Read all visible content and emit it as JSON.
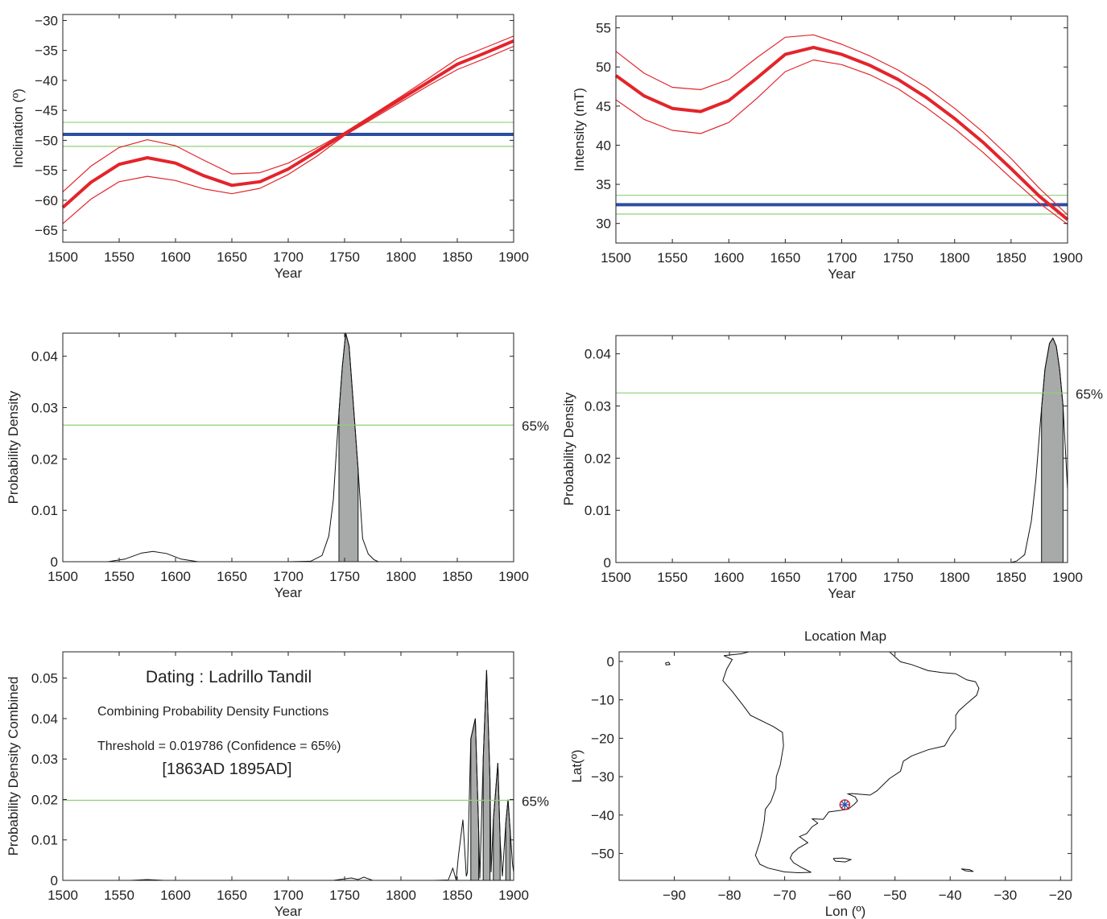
{
  "chart_data": [
    {
      "id": "inclination",
      "type": "line",
      "xlabel": "Year",
      "ylabel": "Inclination (º)",
      "xlim": [
        1500,
        1900
      ],
      "ylim": [
        -67,
        -29
      ],
      "xticks": [
        1500,
        1550,
        1600,
        1650,
        1700,
        1750,
        1800,
        1850,
        1900
      ],
      "yticks": [
        -65,
        -60,
        -55,
        -50,
        -45,
        -40,
        -35,
        -30
      ],
      "ytick_labels": [
        "−65",
        "−60",
        "−55",
        "−50",
        "−45",
        "−40",
        "−35",
        "−30"
      ],
      "x": [
        1500,
        1525,
        1550,
        1575,
        1600,
        1625,
        1650,
        1675,
        1700,
        1725,
        1750,
        1775,
        1800,
        1825,
        1850,
        1875,
        1900
      ],
      "series": [
        {
          "role": "curve",
          "values": [
            -61.2,
            -57.0,
            -54.0,
            -52.9,
            -53.8,
            -55.9,
            -57.5,
            -56.9,
            -54.8,
            -51.9,
            -48.9,
            -46.0,
            -43.1,
            -40.2,
            -37.3,
            -35.4,
            -33.4
          ]
        },
        {
          "role": "upper",
          "values": [
            -58.6,
            -54.3,
            -51.2,
            -49.9,
            -50.9,
            -53.3,
            -55.6,
            -55.4,
            -53.8,
            -51.3,
            -48.7,
            -45.7,
            -42.7,
            -39.6,
            -36.4,
            -34.5,
            -32.6
          ]
        },
        {
          "role": "lower",
          "values": [
            -63.9,
            -59.8,
            -56.9,
            -56.0,
            -56.7,
            -58.1,
            -58.9,
            -58.0,
            -55.7,
            -52.7,
            -49.2,
            -46.4,
            -43.6,
            -40.8,
            -38.2,
            -36.3,
            -34.3
          ]
        }
      ],
      "reference": {
        "value": -49.0,
        "upper": -47.0,
        "lower": -51.0
      }
    },
    {
      "id": "intensity",
      "type": "line",
      "xlabel": "Year",
      "ylabel": "Intensity (mT)",
      "xlim": [
        1500,
        1900
      ],
      "ylim": [
        27.5,
        56.5
      ],
      "xticks": [
        1500,
        1550,
        1600,
        1650,
        1700,
        1750,
        1800,
        1850,
        1900
      ],
      "yticks": [
        30,
        35,
        40,
        45,
        50,
        55
      ],
      "ytick_labels": [
        "30",
        "35",
        "40",
        "45",
        "50",
        "55"
      ],
      "x": [
        1500,
        1525,
        1550,
        1575,
        1600,
        1625,
        1650,
        1675,
        1700,
        1725,
        1750,
        1775,
        1800,
        1825,
        1850,
        1875,
        1900
      ],
      "series": [
        {
          "role": "curve",
          "values": [
            48.9,
            46.3,
            44.7,
            44.3,
            45.7,
            48.6,
            51.6,
            52.5,
            51.6,
            50.2,
            48.4,
            46.1,
            43.4,
            40.4,
            37.0,
            33.5,
            30.5
          ]
        },
        {
          "role": "upper",
          "values": [
            52.0,
            49.2,
            47.4,
            47.1,
            48.4,
            51.2,
            53.8,
            54.1,
            52.9,
            51.4,
            49.6,
            47.4,
            44.7,
            41.7,
            38.3,
            34.5,
            31.1
          ]
        },
        {
          "role": "lower",
          "values": [
            45.8,
            43.3,
            41.9,
            41.5,
            42.9,
            46.0,
            49.4,
            50.9,
            50.3,
            49.0,
            47.2,
            44.8,
            42.1,
            39.1,
            35.8,
            32.6,
            29.9
          ]
        }
      ],
      "reference": {
        "value": 32.4,
        "upper": 33.6,
        "lower": 31.2
      }
    },
    {
      "id": "pdf-inclination",
      "type": "area",
      "xlabel": "Year",
      "ylabel": "Probability Density",
      "xlim": [
        1500,
        1900
      ],
      "ylim": [
        0,
        0.0445
      ],
      "xticks": [
        1500,
        1550,
        1600,
        1650,
        1700,
        1750,
        1800,
        1850,
        1900
      ],
      "yticks": [
        0,
        0.01,
        0.02,
        0.03,
        0.04
      ],
      "ytick_labels": [
        "0",
        "0.01",
        "0.02",
        "0.03",
        "0.04"
      ],
      "x": [
        1500,
        1540,
        1555,
        1570,
        1580,
        1592,
        1605,
        1620,
        1700,
        1720,
        1730,
        1736,
        1740,
        1744,
        1748,
        1751,
        1754,
        1758,
        1762,
        1766,
        1771,
        1776,
        1780,
        1900
      ],
      "values": [
        0,
        0,
        0.0005,
        0.0017,
        0.002,
        0.0016,
        0.0005,
        0,
        0,
        0.0001,
        0.0012,
        0.005,
        0.012,
        0.026,
        0.038,
        0.0445,
        0.042,
        0.03,
        0.018,
        0.0045,
        0.0015,
        0.0004,
        0,
        0
      ],
      "threshold": 0.0266,
      "threshold_label": "65%",
      "interval": [
        1745,
        1762
      ]
    },
    {
      "id": "pdf-intensity",
      "type": "area",
      "xlabel": "Year",
      "ylabel": "Probability Density",
      "xlim": [
        1500,
        1900
      ],
      "ylim": [
        0,
        0.0435
      ],
      "xticks": [
        1500,
        1550,
        1600,
        1650,
        1700,
        1750,
        1800,
        1850,
        1900
      ],
      "yticks": [
        0,
        0.01,
        0.02,
        0.03,
        0.04
      ],
      "ytick_labels": [
        "0",
        "0.01",
        "0.02",
        "0.03",
        "0.04"
      ],
      "x": [
        1500,
        1850,
        1855,
        1862,
        1868,
        1872,
        1876,
        1880,
        1884,
        1887,
        1890,
        1893,
        1896,
        1899,
        1900
      ],
      "values": [
        0,
        0,
        0.0003,
        0.0015,
        0.008,
        0.016,
        0.027,
        0.037,
        0.042,
        0.043,
        0.0415,
        0.037,
        0.03,
        0.018,
        0.014
      ],
      "threshold": 0.0325,
      "threshold_label": "65%",
      "interval": [
        1877,
        1896
      ]
    },
    {
      "id": "pdf-combined",
      "type": "area",
      "xlabel": "Year",
      "ylabel": "Probability Density Combined",
      "xlim": [
        1500,
        1900
      ],
      "ylim": [
        0,
        0.0565
      ],
      "xticks": [
        1500,
        1550,
        1600,
        1650,
        1700,
        1750,
        1800,
        1850,
        1900
      ],
      "yticks": [
        0,
        0.01,
        0.02,
        0.03,
        0.04,
        0.05
      ],
      "ytick_labels": [
        "0",
        "0.01",
        "0.02",
        "0.03",
        "0.04",
        "0.05"
      ],
      "x": [
        1500,
        1560,
        1575,
        1590,
        1740,
        1756,
        1762,
        1767,
        1775,
        1800,
        1830,
        1842,
        1846,
        1849,
        1851,
        1855,
        1858,
        1859,
        1862,
        1866,
        1869,
        1870,
        1873,
        1876,
        1879,
        1880,
        1882,
        1886,
        1888,
        1890,
        1893,
        1895,
        1897,
        1899,
        1900
      ],
      "values": [
        0,
        0,
        0.0002,
        0,
        0,
        0.0006,
        0.0002,
        0.0008,
        0,
        0,
        0,
        0.0001,
        0.003,
        0.0001,
        0.006,
        0.015,
        0.001,
        0.002,
        0.035,
        0.04,
        0.012,
        0.0005,
        0.03,
        0.052,
        0.025,
        0.002,
        0.015,
        0.029,
        0.01,
        0.001,
        0.014,
        0.02,
        0.012,
        0.004,
        0.002
      ],
      "threshold": 0.0198,
      "threshold_label": "65%",
      "peaks_shaded": [
        {
          "x": [
            1862,
            1866,
            1869
          ]
        },
        {
          "x": [
            1873,
            1876,
            1879
          ]
        },
        {
          "x": [
            1882,
            1886,
            1888
          ]
        },
        {
          "x": [
            1893,
            1895,
            1897
          ]
        }
      ],
      "annotations": {
        "title": "Dating : Ladrillo Tandil",
        "line1": "Combining Probability Density Functions",
        "line2": "Threshold = 0.019786 (Confidence = 65%)",
        "line3": "[1863AD   1895AD]"
      }
    },
    {
      "id": "location-map",
      "type": "map",
      "title": "Location Map",
      "xlabel": "Lon (º)",
      "ylabel": "Lat(º)",
      "xlim": [
        -100,
        -18
      ],
      "ylim": [
        -57,
        2.5
      ],
      "xticks": [
        -90,
        -80,
        -70,
        -60,
        -50,
        -40,
        -30,
        -20
      ],
      "xtick_labels": [
        "−90",
        "−80",
        "−70",
        "−60",
        "−50",
        "−40",
        "−30",
        "−20"
      ],
      "yticks": [
        -50,
        -40,
        -30,
        -20,
        -10,
        0
      ],
      "ytick_labels": [
        "−50",
        "−40",
        "−30",
        "−20",
        "−10",
        "0"
      ],
      "site": {
        "lon": -59.1,
        "lat": -37.3
      }
    }
  ]
}
